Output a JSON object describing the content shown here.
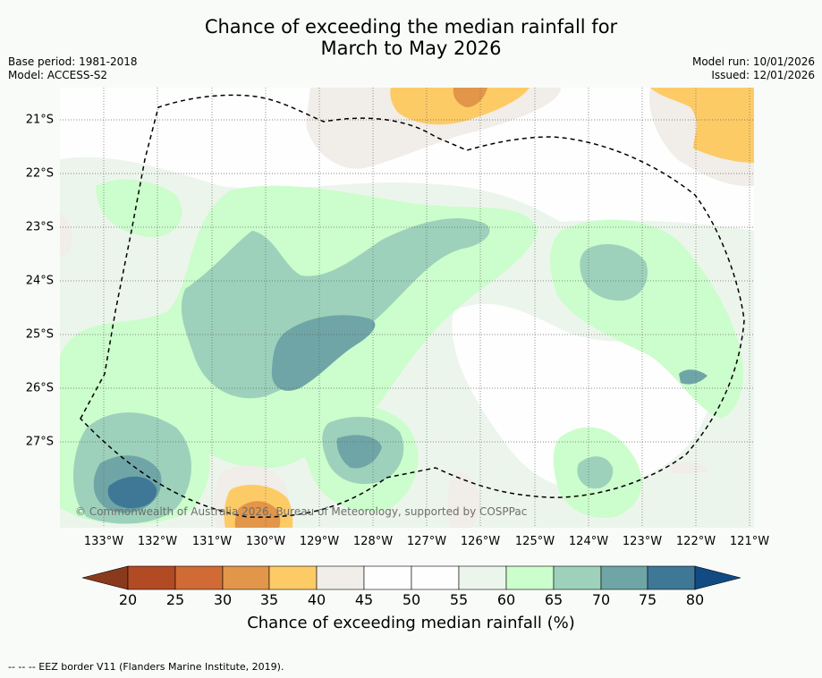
{
  "title_line1": "Chance of exceeding the median rainfall for",
  "title_line2": "March to May 2026",
  "base_period": "Base period: 1981-2018",
  "model": "Model: ACCESS-S2",
  "model_run": "Model run: 10/01/2026",
  "issued": "Issued: 12/01/2026",
  "copyright": "© Commonwealth of Australia 2026, Bureau of Meteorology, supported by COSPPac",
  "footer": "--  --  -- EEZ border V11 (Flanders Marine Institute, 2019).",
  "map": {
    "lon_labels": [
      "133°W",
      "132°W",
      "131°W",
      "130°W",
      "129°W",
      "128°W",
      "127°W",
      "126°W",
      "125°W",
      "124°W",
      "123°W",
      "122°W",
      "121°W"
    ],
    "lat_labels": [
      "21°S",
      "22°S",
      "23°S",
      "24°S",
      "25°S",
      "26°S",
      "27°S"
    ]
  },
  "colorbar": {
    "label": "Chance of exceeding median rainfall (%)",
    "ticks": [
      "20",
      "25",
      "30",
      "35",
      "40",
      "45",
      "50",
      "55",
      "60",
      "65",
      "70",
      "75",
      "80"
    ],
    "colors": {
      "lt20": "#8a3a1c",
      "b20_25": "#b24b24",
      "b25_30": "#d06b35",
      "b30_35": "#e29649",
      "b35_40": "#fdcb66",
      "b40_45": "#f1ede8",
      "b45_50": "#fefefe",
      "b50_55": "#fefefe",
      "b55_60": "#ecf5ec",
      "b60_65": "#ccfdcc",
      "b65_70": "#9dd1bb",
      "b70_75": "#6fa5a6",
      "b75_80": "#3f7796",
      "gt80": "#124b84"
    }
  }
}
